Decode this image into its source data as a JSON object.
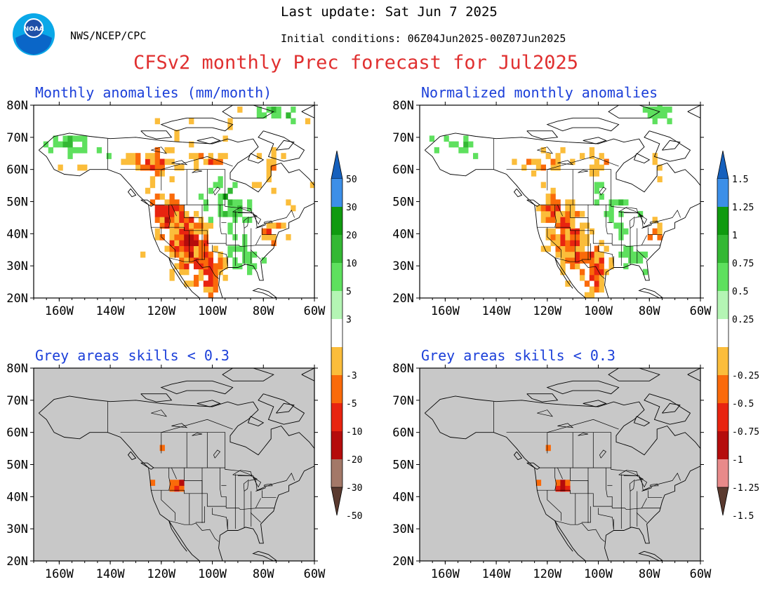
{
  "header": {
    "last_update": "Last update: Sat Jun 7 2025",
    "initial_conditions": "Initial conditions: 06Z04Jun2025-00Z07Jun2025",
    "agency": "NWS/NCEP/CPC",
    "title": "CFSv2 monthly Prec forecast for Jul2025",
    "logo_text": "NOAA"
  },
  "panels": [
    {
      "id": "anom",
      "title": "Monthly anomalies (mm/month)",
      "grey": false
    },
    {
      "id": "norm",
      "title": "Normalized monthly anomalies",
      "grey": false
    },
    {
      "id": "anom-skill",
      "title": "Grey areas skills < 0.3",
      "grey": true
    },
    {
      "id": "norm-skill",
      "title": "Grey areas skills < 0.3",
      "grey": true
    }
  ],
  "axes": {
    "lat_labels": [
      "80N",
      "70N",
      "60N",
      "50N",
      "40N",
      "30N",
      "20N"
    ],
    "lon_labels": [
      "160W",
      "140W",
      "120W",
      "100W",
      "80W",
      "60W"
    ]
  },
  "colorbars": [
    {
      "id": "mm",
      "labels": [
        "50",
        "30",
        "20",
        "10",
        "5",
        "3",
        "-3",
        "-5",
        "-10",
        "-20",
        "-30",
        "-50"
      ]
    },
    {
      "id": "norm",
      "labels": [
        "1.5",
        "1.25",
        "1",
        "0.75",
        "0.5",
        "0.25",
        "-0.25",
        "-0.5",
        "-0.75",
        "-1",
        "-1.25",
        "-1.5"
      ]
    }
  ],
  "colors": {
    "wet": [
      "#1560bd",
      "#3c8fe8",
      "#109a10",
      "#34b834",
      "#5ee05e",
      "#b4f5b4"
    ],
    "neutral": "#ffffff",
    "dry": [
      "#fbbd3b",
      "#fa6a0a",
      "#e82410",
      "#b50c0c",
      "#a37868",
      "#5a3a2f"
    ],
    "dry_norm": [
      "#fbbd3b",
      "#fa6a0a",
      "#e82410",
      "#b50c0c",
      "#e88a8a",
      "#5a3a2f"
    ],
    "grey_fill": "#c8c8c8",
    "title_red": "#e03030",
    "panel_title_blue": "#1b3fd9"
  }
}
